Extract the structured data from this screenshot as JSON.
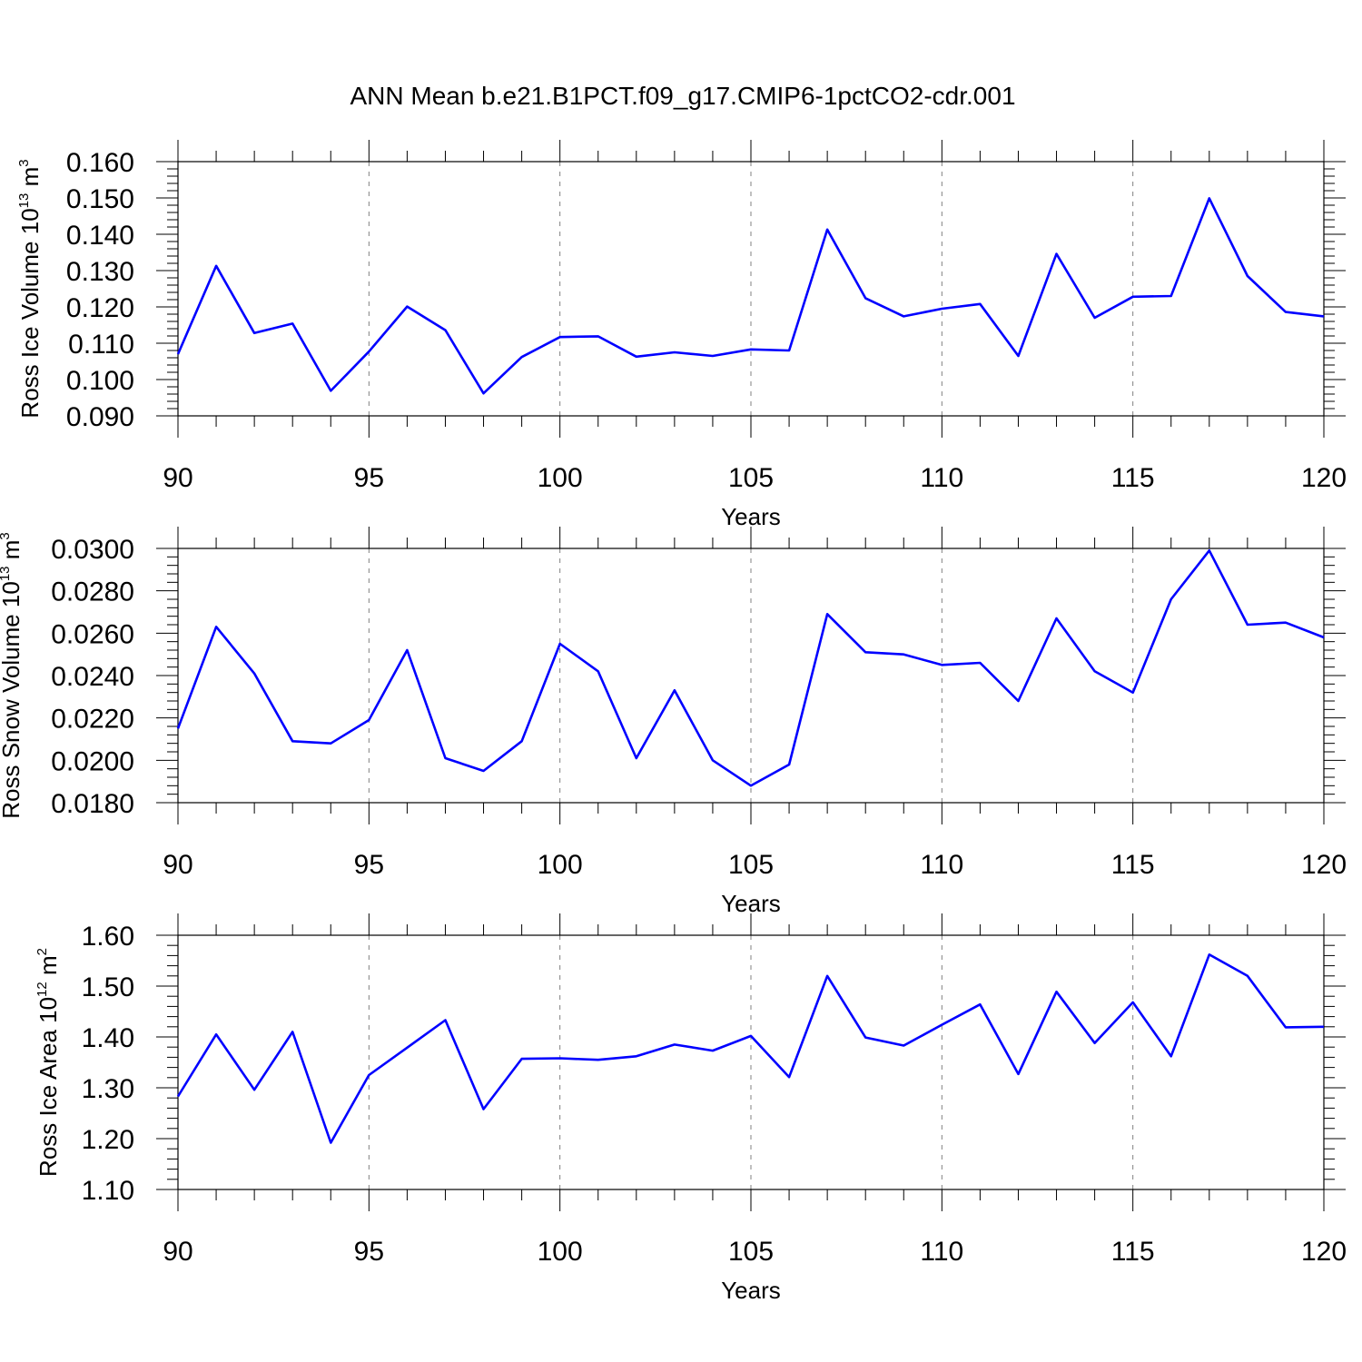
{
  "title": "ANN Mean b.e21.B1PCT.f09_g17.CMIP6-1pctCO2-cdr.001",
  "colors": {
    "series": "#0000ff",
    "axis": "#000000",
    "grid": "#808080"
  },
  "chart_data": [
    {
      "type": "line",
      "name": "ross-ice-volume",
      "ylabel_base": "Ross Ice Volume 10",
      "ylabel_exp": "13",
      "ylabel_unit": " m",
      "ylabel_unit_exp": "3",
      "xlabel": "Years",
      "xlim": [
        90,
        120
      ],
      "ylim": [
        0.09,
        0.16
      ],
      "xticks": [
        90,
        95,
        100,
        105,
        110,
        115,
        120
      ],
      "xtick_labels": [
        "90",
        "95",
        "100",
        "105",
        "110",
        "115",
        "120"
      ],
      "yticks": [
        0.09,
        0.1,
        0.11,
        0.12,
        0.13,
        0.14,
        0.15,
        0.16
      ],
      "ytick_labels": [
        "0.090",
        "0.100",
        "0.110",
        "0.120",
        "0.130",
        "0.140",
        "0.150",
        "0.160"
      ],
      "x_grid": [
        95,
        100,
        105,
        110,
        115
      ],
      "x": [
        90,
        91,
        92,
        93,
        94,
        95,
        96,
        97,
        98,
        99,
        100,
        101,
        102,
        103,
        104,
        105,
        106,
        107,
        108,
        109,
        110,
        111,
        112,
        113,
        114,
        115,
        116,
        117,
        118,
        119,
        120
      ],
      "values": [
        0.107,
        0.1313,
        0.1128,
        0.1154,
        0.0969,
        0.1077,
        0.1201,
        0.1136,
        0.0962,
        0.1062,
        0.1117,
        0.1119,
        0.1063,
        0.1075,
        0.1065,
        0.1083,
        0.108,
        0.1413,
        0.1224,
        0.1174,
        0.1195,
        0.1208,
        0.1065,
        0.1346,
        0.117,
        0.1228,
        0.123,
        0.1499,
        0.1285,
        0.1186,
        0.1174
      ]
    },
    {
      "type": "line",
      "name": "ross-snow-volume",
      "ylabel_base": "Ross Snow Volume 10",
      "ylabel_exp": "13",
      "ylabel_unit": " m",
      "ylabel_unit_exp": "3",
      "xlabel": "Years",
      "xlim": [
        90,
        120
      ],
      "ylim": [
        0.018,
        0.03
      ],
      "xticks": [
        90,
        95,
        100,
        105,
        110,
        115,
        120
      ],
      "xtick_labels": [
        "90",
        "95",
        "100",
        "105",
        "110",
        "115",
        "120"
      ],
      "yticks": [
        0.018,
        0.02,
        0.022,
        0.024,
        0.026,
        0.028,
        0.03
      ],
      "ytick_labels": [
        "0.0180",
        "0.0200",
        "0.0220",
        "0.0240",
        "0.0260",
        "0.0280",
        "0.0300"
      ],
      "x_grid": [
        95,
        100,
        105,
        110,
        115
      ],
      "x": [
        90,
        91,
        92,
        93,
        94,
        95,
        96,
        97,
        98,
        99,
        100,
        101,
        102,
        103,
        104,
        105,
        106,
        107,
        108,
        109,
        110,
        111,
        112,
        113,
        114,
        115,
        116,
        117,
        118,
        119,
        120
      ],
      "values": [
        0.0215,
        0.0263,
        0.0241,
        0.0209,
        0.0208,
        0.0219,
        0.0252,
        0.0201,
        0.0195,
        0.0209,
        0.0255,
        0.0242,
        0.0201,
        0.0233,
        0.02,
        0.0188,
        0.0198,
        0.0269,
        0.0251,
        0.025,
        0.0245,
        0.0246,
        0.0228,
        0.0267,
        0.0242,
        0.0232,
        0.0276,
        0.0299,
        0.0264,
        0.0265,
        0.0258
      ]
    },
    {
      "type": "line",
      "name": "ross-ice-area",
      "ylabel_base": "Ross Ice Area 10",
      "ylabel_exp": "12",
      "ylabel_unit": " m",
      "ylabel_unit_exp": "2",
      "xlabel": "Years",
      "xlim": [
        90,
        120
      ],
      "ylim": [
        1.1,
        1.6
      ],
      "xticks": [
        90,
        95,
        100,
        105,
        110,
        115,
        120
      ],
      "xtick_labels": [
        "90",
        "95",
        "100",
        "105",
        "110",
        "115",
        "120"
      ],
      "yticks": [
        1.1,
        1.2,
        1.3,
        1.4,
        1.5,
        1.6
      ],
      "ytick_labels": [
        "1.10",
        "1.20",
        "1.30",
        "1.40",
        "1.50",
        "1.60"
      ],
      "x_grid": [
        95,
        100,
        105,
        110,
        115
      ],
      "x": [
        90,
        91,
        92,
        93,
        94,
        95,
        96,
        97,
        98,
        99,
        100,
        101,
        102,
        103,
        104,
        105,
        106,
        107,
        108,
        109,
        110,
        111,
        112,
        113,
        114,
        115,
        116,
        117,
        118,
        119,
        120
      ],
      "values": [
        1.283,
        1.405,
        1.296,
        1.41,
        1.192,
        1.325,
        1.379,
        1.433,
        1.258,
        1.357,
        1.358,
        1.355,
        1.362,
        1.385,
        1.373,
        1.402,
        1.321,
        1.52,
        1.399,
        1.383,
        1.424,
        1.464,
        1.327,
        1.489,
        1.388,
        1.468,
        1.362,
        1.562,
        1.52,
        1.419,
        1.42
      ]
    }
  ]
}
